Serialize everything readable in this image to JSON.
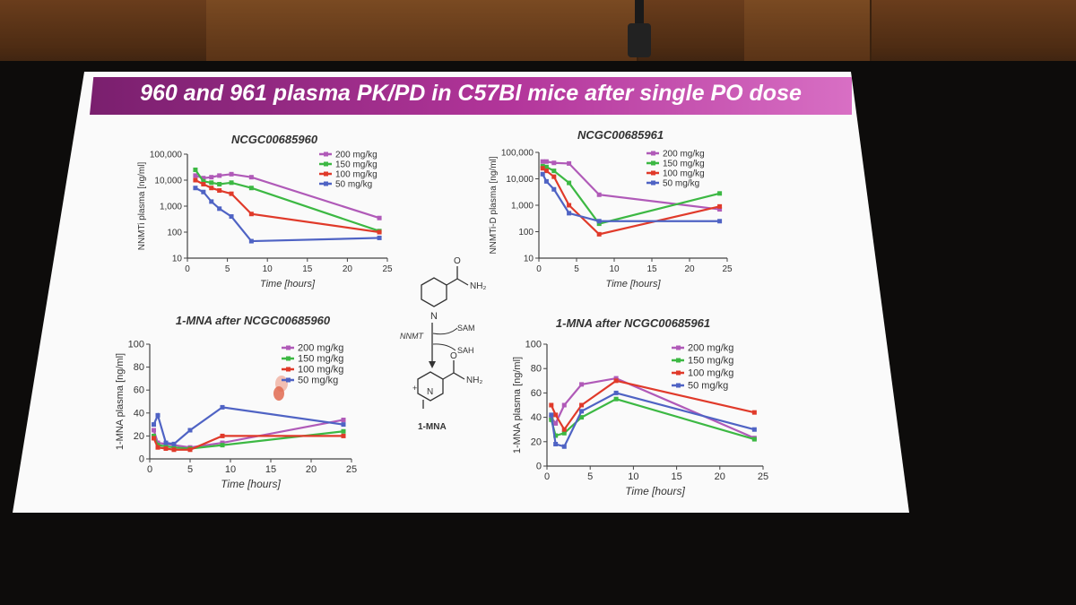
{
  "slide": {
    "title": "960 and 961 plasma PK/PD in C57Bl mice after single PO dose",
    "scheme": {
      "enzyme": "NNMT",
      "cofactor_in": "SAM",
      "cofactor_out": "SAH",
      "top_group": "NH₂",
      "bottom_group": "NH₂",
      "charge": "+",
      "product": "1-MNA"
    }
  },
  "colors": {
    "200 mg/kg": "#b05ab8",
    "150 mg/kg": "#3cb843",
    "100 mg/kg": "#e03a2a",
    "50 mg/kg": "#4f63c4"
  },
  "chart_data": [
    {
      "id": "tl",
      "type": "line",
      "title": "NCGC00685960",
      "xlabel": "Time [hours]",
      "ylabel": "NNMTi plasma [ng/ml]",
      "yscale": "log",
      "xlim": [
        0,
        25
      ],
      "ylim": [
        10,
        100000
      ],
      "xticks": [
        "0",
        "5",
        "10",
        "15",
        "20",
        "25"
      ],
      "yticks": [
        "10",
        "100",
        "1,000",
        "10,000",
        "100,000"
      ],
      "legend": [
        "200 mg/kg",
        "150 mg/kg",
        "100 mg/kg",
        "50 mg/kg"
      ],
      "series": [
        {
          "name": "200 mg/kg",
          "x": [
            1,
            2,
            3,
            4,
            5.5,
            8,
            24
          ],
          "y": [
            15000,
            12000,
            13000,
            15000,
            17000,
            13000,
            350
          ]
        },
        {
          "name": "150 mg/kg",
          "x": [
            1,
            2,
            3,
            4,
            5.5,
            8,
            24
          ],
          "y": [
            25000,
            9000,
            8000,
            7000,
            8000,
            5000,
            110
          ]
        },
        {
          "name": "100 mg/kg",
          "x": [
            1,
            2,
            3,
            4,
            5.5,
            8,
            24
          ],
          "y": [
            10000,
            7000,
            5000,
            4000,
            3000,
            500,
            100
          ]
        },
        {
          "name": "50 mg/kg",
          "x": [
            1,
            2,
            3,
            4,
            5.5,
            8,
            24
          ],
          "y": [
            5000,
            3500,
            1500,
            800,
            400,
            45,
            60
          ]
        }
      ]
    },
    {
      "id": "tr",
      "type": "line",
      "title": "NCGC00685961",
      "xlabel": "Time [hours]",
      "ylabel": "NNMTi-D plasma [ng/ml]",
      "yscale": "log",
      "xlim": [
        0,
        25
      ],
      "ylim": [
        10,
        100000
      ],
      "xticks": [
        "0",
        "5",
        "10",
        "15",
        "20",
        "25"
      ],
      "yticks": [
        "10",
        "100",
        "1,000",
        "10,000",
        "100,000"
      ],
      "legend": [
        "200 mg/kg",
        "150 mg/kg",
        "100 mg/kg",
        "50 mg/kg"
      ],
      "series": [
        {
          "name": "200 mg/kg",
          "x": [
            0.5,
            1,
            2,
            4,
            8,
            24
          ],
          "y": [
            45000,
            45000,
            40000,
            38000,
            2500,
            700
          ]
        },
        {
          "name": "150 mg/kg",
          "x": [
            0.5,
            1,
            2,
            4,
            8,
            24
          ],
          "y": [
            30000,
            28000,
            20000,
            7000,
            200,
            2800
          ]
        },
        {
          "name": "100 mg/kg",
          "x": [
            0.5,
            1,
            2,
            4,
            8,
            24
          ],
          "y": [
            25000,
            20000,
            12000,
            1000,
            80,
            900
          ]
        },
        {
          "name": "50 mg/kg",
          "x": [
            0.5,
            1,
            2,
            4,
            8,
            24
          ],
          "y": [
            15000,
            8000,
            4000,
            500,
            250,
            250
          ]
        }
      ]
    },
    {
      "id": "bl",
      "type": "line",
      "title": "1-MNA after NCGC00685960",
      "xlabel": "Time [hours]",
      "ylabel": "1-MNA plasma [ng/ml]",
      "yscale": "linear",
      "xlim": [
        0,
        25
      ],
      "ylim": [
        0,
        100
      ],
      "xticks": [
        "0",
        "5",
        "10",
        "15",
        "20",
        "25"
      ],
      "yticks": [
        "0",
        "20",
        "40",
        "60",
        "80",
        "100"
      ],
      "legend": [
        "200 mg/kg",
        "150 mg/kg",
        "100 mg/kg",
        "50 mg/kg"
      ],
      "series": [
        {
          "name": "200 mg/kg",
          "x": [
            0.5,
            1,
            2,
            3,
            5,
            9,
            24
          ],
          "y": [
            25,
            14,
            13,
            12,
            10,
            14,
            34
          ]
        },
        {
          "name": "150 mg/kg",
          "x": [
            0.5,
            1,
            2,
            3,
            5,
            9,
            24
          ],
          "y": [
            20,
            12,
            11,
            10,
            9,
            12,
            24
          ]
        },
        {
          "name": "100 mg/kg",
          "x": [
            0.5,
            1,
            2,
            3,
            5,
            9,
            24
          ],
          "y": [
            18,
            10,
            9,
            8,
            8,
            20,
            20
          ]
        },
        {
          "name": "50 mg/kg",
          "x": [
            0.5,
            1,
            2,
            3,
            5,
            9,
            24
          ],
          "y": [
            30,
            38,
            14,
            13,
            25,
            45,
            30
          ]
        }
      ]
    },
    {
      "id": "br",
      "type": "line",
      "title": "1-MNA after NCGC00685961",
      "xlabel": "Time [hours]",
      "ylabel": "1-MNA plasma [ng/ml]",
      "yscale": "linear",
      "xlim": [
        0,
        25
      ],
      "ylim": [
        0,
        100
      ],
      "xticks": [
        "0",
        "5",
        "10",
        "15",
        "20",
        "25"
      ],
      "yticks": [
        "0",
        "20",
        "40",
        "60",
        "80",
        "100"
      ],
      "legend": [
        "200 mg/kg",
        "150 mg/kg",
        "100 mg/kg",
        "50 mg/kg"
      ],
      "series": [
        {
          "name": "200 mg/kg",
          "x": [
            0.5,
            1,
            2,
            4,
            8,
            24
          ],
          "y": [
            40,
            35,
            50,
            67,
            72,
            23
          ]
        },
        {
          "name": "150 mg/kg",
          "x": [
            0.5,
            1,
            2,
            4,
            8,
            24
          ],
          "y": [
            38,
            25,
            27,
            40,
            55,
            22
          ]
        },
        {
          "name": "100 mg/kg",
          "x": [
            0.5,
            1,
            2,
            4,
            8,
            24
          ],
          "y": [
            50,
            42,
            30,
            50,
            70,
            44
          ]
        },
        {
          "name": "50 mg/kg",
          "x": [
            0.5,
            1,
            2,
            4,
            8,
            24
          ],
          "y": [
            42,
            18,
            16,
            45,
            60,
            30
          ]
        }
      ]
    }
  ]
}
